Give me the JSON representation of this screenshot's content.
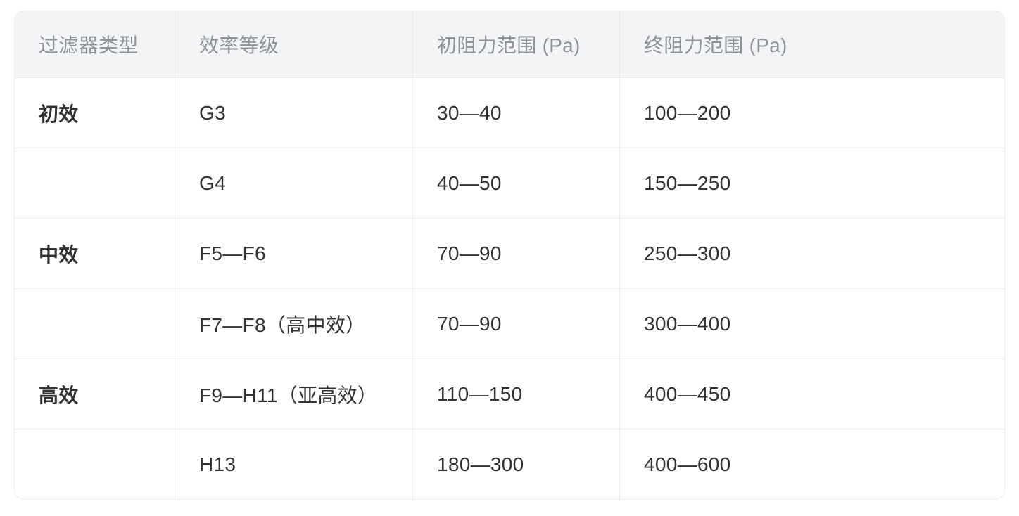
{
  "table": {
    "title_semantic": "air-filter-resistance-spec-table",
    "columns": [
      {
        "label": "过滤器类型"
      },
      {
        "label": "效率等级"
      },
      {
        "label": "初阻力范围 (Pa)"
      },
      {
        "label": "终阻力范围 (Pa)"
      }
    ],
    "rows": [
      {
        "cells": [
          "初效",
          "G3",
          "30—40",
          "100—200"
        ]
      },
      {
        "cells": [
          "",
          "G4",
          "40—50",
          "150—250"
        ]
      },
      {
        "cells": [
          "中效",
          "F5—F6",
          "70—90",
          "250—300"
        ]
      },
      {
        "cells": [
          "",
          "F7—F8（高中效）",
          "70—90",
          "300—400"
        ]
      },
      {
        "cells": [
          "高效",
          "F9—H11（亚高效）",
          "110—150",
          "400—450"
        ]
      },
      {
        "cells": [
          "",
          "H13",
          "180—300",
          "400—600"
        ]
      }
    ],
    "colors": {
      "header_bg": "#f3f4f6",
      "header_text": "#8d929b",
      "body_text": "#303133",
      "border": "#ebedf0",
      "background": "#ffffff"
    }
  }
}
